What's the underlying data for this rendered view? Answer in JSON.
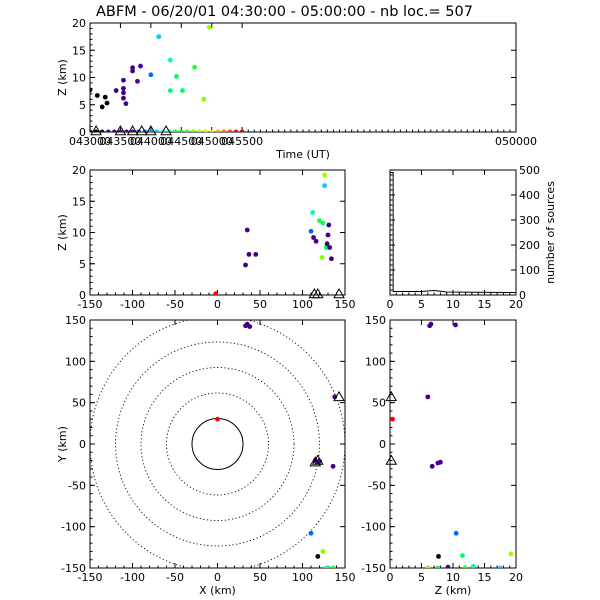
{
  "title": "ABFM - 06/20/01 04:30:00 - 05:00:00 - nb loc.=     507",
  "chart_data": [
    {
      "panel": "time-height",
      "type": "scatter",
      "xlabel": "Time (UT)",
      "ylabel": "Z (km)",
      "xlim": [
        43000,
        50000
      ],
      "ylim": [
        0,
        20
      ],
      "x_ticks": [
        43000,
        43500,
        44000,
        44500,
        45000,
        45500,
        50000
      ],
      "x_tick_labels": [
        "043000",
        "043500",
        "044000",
        "044500",
        "045000",
        "045500",
        "050000"
      ],
      "y_ticks": [
        0,
        5,
        10,
        15,
        20
      ],
      "points": [
        {
          "x": 43000,
          "y": 7.7,
          "c": "#000000"
        },
        {
          "x": 43120,
          "y": 6.7,
          "c": "#000000"
        },
        {
          "x": 43250,
          "y": 6.4,
          "c": "#000000"
        },
        {
          "x": 43280,
          "y": 5.3,
          "c": "#000000"
        },
        {
          "x": 43200,
          "y": 4.6,
          "c": "#000000"
        },
        {
          "x": 43430,
          "y": 7.6,
          "c": "#440088"
        },
        {
          "x": 43550,
          "y": 9.5,
          "c": "#440088"
        },
        {
          "x": 43550,
          "y": 8.0,
          "c": "#440088"
        },
        {
          "x": 43550,
          "y": 7.2,
          "c": "#440088"
        },
        {
          "x": 43550,
          "y": 6.2,
          "c": "#440088"
        },
        {
          "x": 43590,
          "y": 5.2,
          "c": "#440088"
        },
        {
          "x": 43700,
          "y": 11.8,
          "c": "#440088"
        },
        {
          "x": 43700,
          "y": 11.2,
          "c": "#440088"
        },
        {
          "x": 43780,
          "y": 9.3,
          "c": "#5500a0"
        },
        {
          "x": 43830,
          "y": 12.1,
          "c": "#3300cc"
        },
        {
          "x": 44000,
          "y": 10.5,
          "c": "#0066ff"
        },
        {
          "x": 44130,
          "y": 17.5,
          "c": "#00ccff"
        },
        {
          "x": 44320,
          "y": 13.2,
          "c": "#00ffaa"
        },
        {
          "x": 44420,
          "y": 10.2,
          "c": "#00ff66"
        },
        {
          "x": 44320,
          "y": 7.6,
          "c": "#00ff66"
        },
        {
          "x": 44520,
          "y": 7.6,
          "c": "#00ff66"
        },
        {
          "x": 44720,
          "y": 11.9,
          "c": "#22ff22"
        },
        {
          "x": 44870,
          "y": 6.0,
          "c": "#88ff00"
        },
        {
          "x": 44960,
          "y": 19.2,
          "c": "#99ff00"
        }
      ],
      "baseline_points": [
        {
          "x": 43000,
          "c": "#000000"
        },
        {
          "x": 43100,
          "c": "#000000"
        },
        {
          "x": 43200,
          "c": "#220022"
        },
        {
          "x": 43300,
          "c": "#440088"
        },
        {
          "x": 43400,
          "c": "#440088"
        },
        {
          "x": 43500,
          "c": "#440088"
        },
        {
          "x": 43600,
          "c": "#440088"
        },
        {
          "x": 43700,
          "c": "#3300cc"
        },
        {
          "x": 43800,
          "c": "#0044ff"
        },
        {
          "x": 43900,
          "c": "#0066ff"
        },
        {
          "x": 44000,
          "c": "#0099ff"
        },
        {
          "x": 44100,
          "c": "#00ccff"
        },
        {
          "x": 44200,
          "c": "#00ffee"
        },
        {
          "x": 44300,
          "c": "#00ffaa"
        },
        {
          "x": 44400,
          "c": "#00ff66"
        },
        {
          "x": 44500,
          "c": "#00ff22"
        },
        {
          "x": 44600,
          "c": "#44ff00"
        },
        {
          "x": 44700,
          "c": "#88ff00"
        },
        {
          "x": 44800,
          "c": "#bbff00"
        },
        {
          "x": 44900,
          "c": "#ddee00"
        },
        {
          "x": 45000,
          "c": "#ffdd00"
        },
        {
          "x": 45100,
          "c": "#ffaa00"
        },
        {
          "x": 45200,
          "c": "#ff7700"
        },
        {
          "x": 45300,
          "c": "#ff4400"
        },
        {
          "x": 45400,
          "c": "#ff0000"
        },
        {
          "x": 45500,
          "c": "#dd0000"
        }
      ],
      "triangles_x": [
        43100,
        43500,
        43700,
        43850,
        44000,
        44250
      ]
    },
    {
      "panel": "x-height",
      "type": "scatter",
      "xlabel": "",
      "ylabel": "Z (km)",
      "xlim": [
        -150,
        150
      ],
      "ylim": [
        0,
        20
      ],
      "x_ticks": [
        -150,
        -100,
        -50,
        0,
        50,
        100,
        150
      ],
      "y_ticks": [
        0,
        5,
        10,
        15,
        20
      ],
      "points": [
        {
          "x": -2,
          "y": 0.2,
          "c": "#ff0000"
        },
        {
          "x": 35,
          "y": 10.4,
          "c": "#440088"
        },
        {
          "x": 37,
          "y": 6.5,
          "c": "#440088"
        },
        {
          "x": 33,
          "y": 4.8,
          "c": "#440088"
        },
        {
          "x": 45,
          "y": 6.5,
          "c": "#440088"
        },
        {
          "x": 112,
          "y": 13.2,
          "c": "#00ffaa"
        },
        {
          "x": 110,
          "y": 10.2,
          "c": "#0066ff"
        },
        {
          "x": 113,
          "y": 9.2,
          "c": "#440088"
        },
        {
          "x": 116,
          "y": 8.6,
          "c": "#440088"
        },
        {
          "x": 120,
          "y": 11.9,
          "c": "#22ff22"
        },
        {
          "x": 124,
          "y": 11.5,
          "c": "#00ff66"
        },
        {
          "x": 126,
          "y": 17.5,
          "c": "#00ccff"
        },
        {
          "x": 126,
          "y": 19.2,
          "c": "#99ff00"
        },
        {
          "x": 123,
          "y": 6.0,
          "c": "#88ff00"
        },
        {
          "x": 128,
          "y": 7.6,
          "c": "#00ff66"
        },
        {
          "x": 132,
          "y": 7.6,
          "c": "#440088"
        },
        {
          "x": 134,
          "y": 5.8,
          "c": "#440088"
        },
        {
          "x": 130,
          "y": 9.6,
          "c": "#440088"
        },
        {
          "x": 131,
          "y": 11.2,
          "c": "#440088"
        },
        {
          "x": 129,
          "y": 8.2,
          "c": "#440088"
        }
      ],
      "triangles_x": [
        114,
        118,
        143
      ]
    },
    {
      "panel": "height-histogram",
      "type": "line",
      "ylabel": "number of sources",
      "xlim": [
        0,
        20
      ],
      "ylim": [
        0,
        500
      ],
      "x_ticks": [
        0,
        5,
        10,
        15,
        20
      ],
      "y_ticks": [
        0,
        100,
        200,
        300,
        400,
        500
      ],
      "points": [
        [
          0,
          490
        ],
        [
          0.5,
          490
        ],
        [
          0.5,
          14
        ],
        [
          5,
          14
        ],
        [
          7,
          18
        ],
        [
          9,
          12
        ],
        [
          20,
          10
        ]
      ]
    },
    {
      "panel": "plan-view",
      "type": "scatter",
      "xlabel": "X (km)",
      "ylabel": "Y (km)",
      "xlim": [
        -150,
        150
      ],
      "ylim": [
        -150,
        150
      ],
      "x_ticks": [
        -150,
        -100,
        -50,
        0,
        50,
        100,
        150
      ],
      "y_ticks": [
        -150,
        -100,
        -50,
        0,
        50,
        100,
        150
      ],
      "range_rings_km": [
        30,
        60,
        90,
        120,
        150
      ],
      "points": [
        {
          "x": 35,
          "y": 145,
          "c": "#440088"
        },
        {
          "x": 38,
          "y": 142,
          "c": "#440088"
        },
        {
          "x": 33,
          "y": 143,
          "c": "#440088"
        },
        {
          "x": 0,
          "y": 30,
          "c": "#ff0000"
        },
        {
          "x": 138,
          "y": 57,
          "c": "#440088"
        },
        {
          "x": 115,
          "y": -20,
          "c": "#440088"
        },
        {
          "x": 117,
          "y": -22,
          "c": "#440088"
        },
        {
          "x": 120,
          "y": -21,
          "c": "#440088"
        },
        {
          "x": 136,
          "y": -27,
          "c": "#440088"
        },
        {
          "x": 110,
          "y": -108,
          "c": "#0066ff"
        },
        {
          "x": 118,
          "y": -136,
          "c": "#000000"
        },
        {
          "x": 124,
          "y": -130,
          "c": "#88ff00"
        },
        {
          "x": 130,
          "y": -150,
          "c": "#00ccff"
        },
        {
          "x": 128,
          "y": -150,
          "c": "#00ffaa"
        },
        {
          "x": 136,
          "y": -150,
          "c": "#22ff22"
        }
      ],
      "triangles": [
        [
          118,
          -20
        ],
        [
          115,
          -22
        ],
        [
          143,
          57
        ]
      ]
    },
    {
      "panel": "z-y",
      "type": "scatter",
      "xlabel": "Z (km)",
      "ylabel": "",
      "xlim": [
        0,
        20
      ],
      "ylim": [
        -150,
        150
      ],
      "x_ticks": [
        0,
        5,
        10,
        15,
        20
      ],
      "y_ticks": [
        -150,
        -100,
        -50,
        0,
        50,
        100,
        150
      ],
      "points": [
        {
          "x": 6.3,
          "y": 143,
          "c": "#440088"
        },
        {
          "x": 6.5,
          "y": 145,
          "c": "#440088"
        },
        {
          "x": 10.4,
          "y": 144,
          "c": "#440088"
        },
        {
          "x": 6.0,
          "y": 57,
          "c": "#440088"
        },
        {
          "x": 0.4,
          "y": 30,
          "c": "#ff0000"
        },
        {
          "x": 8.0,
          "y": -22,
          "c": "#440088"
        },
        {
          "x": 7.6,
          "y": -23,
          "c": "#440088"
        },
        {
          "x": 6.7,
          "y": -27,
          "c": "#440088"
        },
        {
          "x": 10.5,
          "y": -108,
          "c": "#0066ff"
        },
        {
          "x": 7.7,
          "y": -136,
          "c": "#000000"
        },
        {
          "x": 11.5,
          "y": -135,
          "c": "#00ff66"
        },
        {
          "x": 11.9,
          "y": -150,
          "c": "#22ff22"
        },
        {
          "x": 13.2,
          "y": -148,
          "c": "#00ffaa"
        },
        {
          "x": 17.5,
          "y": -150,
          "c": "#00ccff"
        },
        {
          "x": 19.2,
          "y": -133,
          "c": "#99ff00"
        },
        {
          "x": 6.0,
          "y": -150,
          "c": "#88ff00"
        },
        {
          "x": 7.6,
          "y": -150,
          "c": "#00ff66"
        },
        {
          "x": 9.2,
          "y": -149,
          "c": "#440088"
        }
      ],
      "triangles": [
        [
          0.2,
          57
        ],
        [
          0.2,
          -20
        ]
      ]
    }
  ]
}
